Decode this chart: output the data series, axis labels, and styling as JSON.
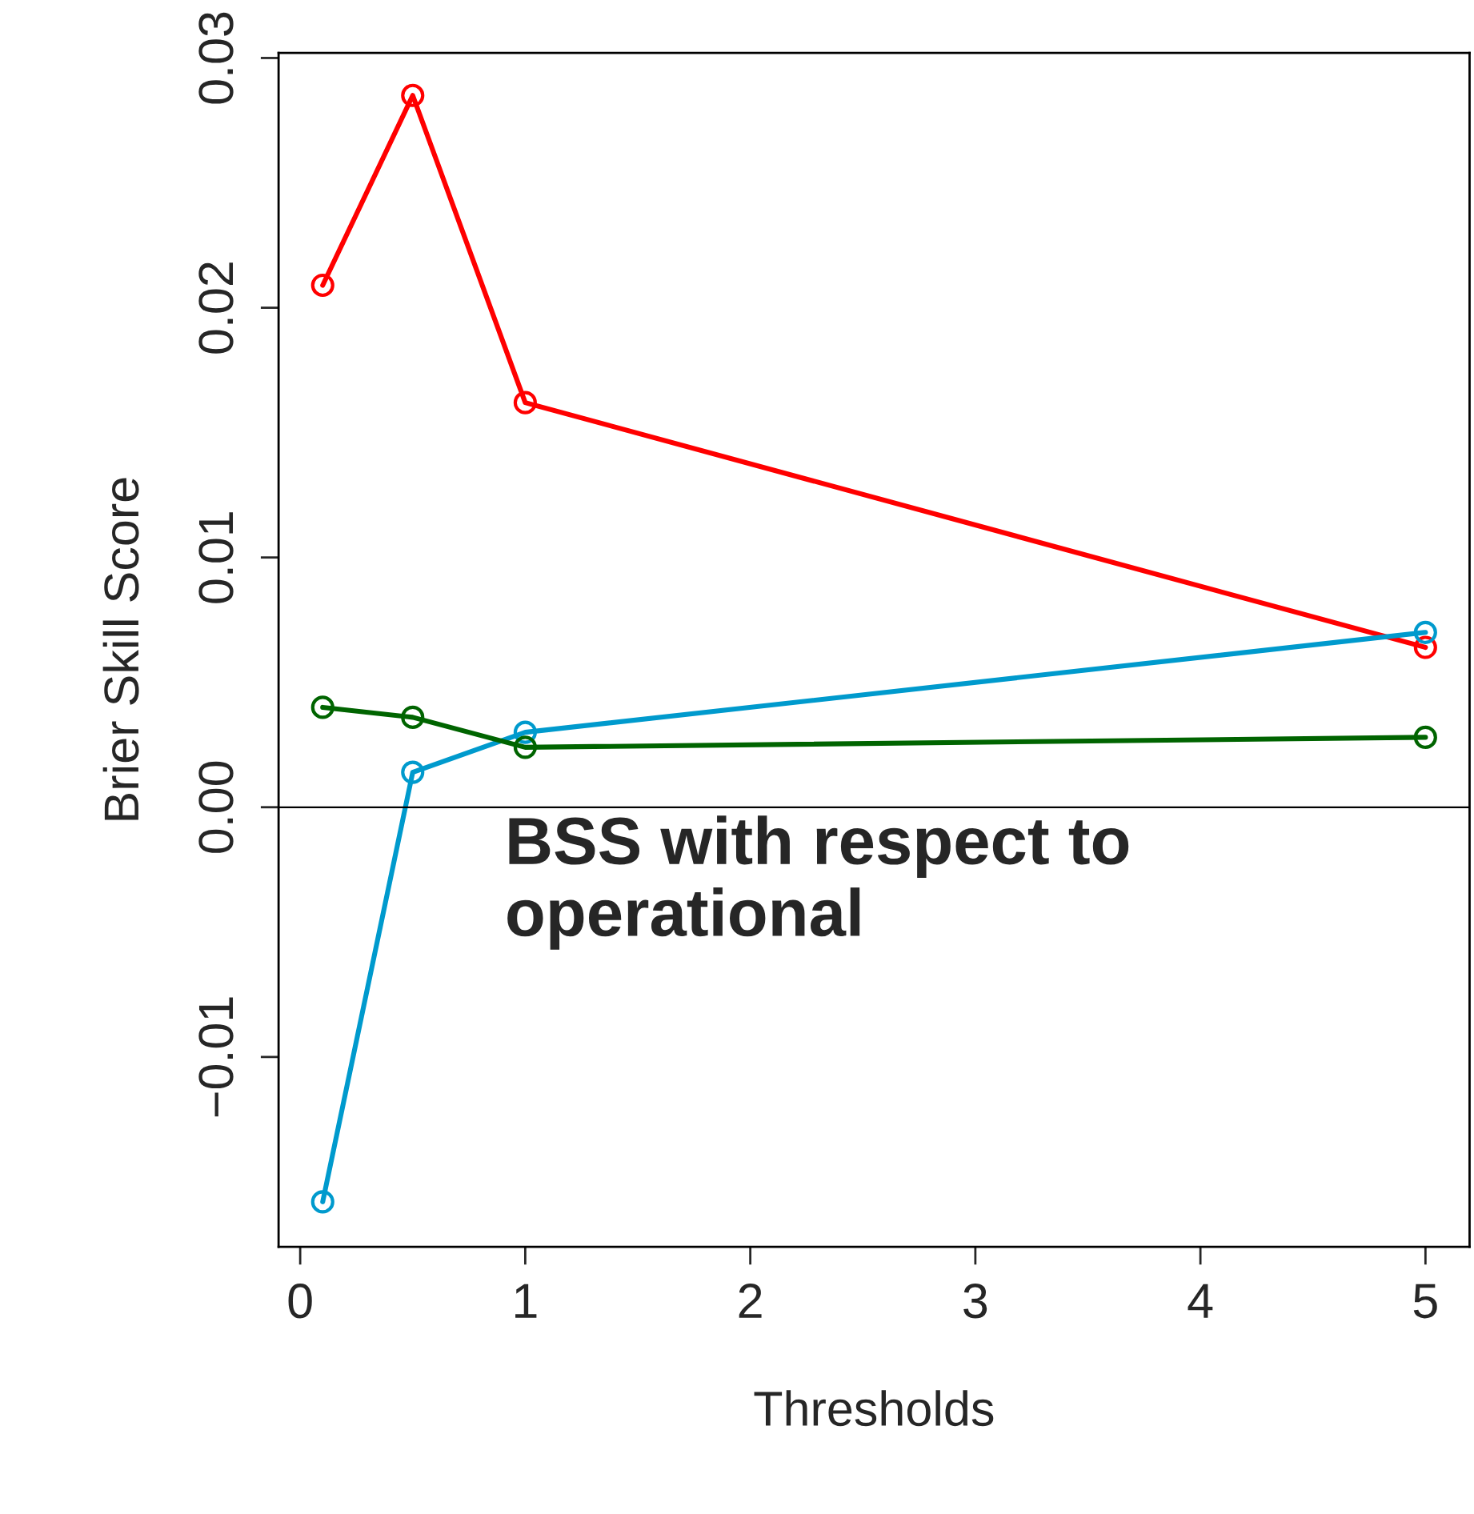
{
  "chart_data": {
    "type": "line",
    "xlabel": "Thresholds",
    "ylabel": "Brier Skill Score",
    "x": [
      0.1,
      0.5,
      1,
      5
    ],
    "series": [
      {
        "color": "#ff0000",
        "values": [
          0.0209,
          0.0285,
          0.0162,
          0.0064
        ]
      },
      {
        "color": "#009acd",
        "values": [
          -0.0158,
          0.0014,
          0.003,
          0.007
        ]
      },
      {
        "color": "#006400",
        "values": [
          0.004,
          0.0036,
          0.0024,
          0.0028
        ]
      }
    ],
    "xlim": [
      -0.096,
      5.196
    ],
    "ylim": [
      -0.0176,
      0.0302
    ],
    "xticks": [
      0,
      1,
      2,
      3,
      4,
      5
    ],
    "yticks": [
      {
        "value": -0.01,
        "label": "−0.01"
      },
      {
        "value": 0,
        "label": "0.00"
      },
      {
        "value": 0.01,
        "label": "0.01"
      },
      {
        "value": 0.02,
        "label": "0.02"
      },
      {
        "value": 0.03,
        "label": "0.03"
      }
    ],
    "ref_lines": [
      {
        "axis": "y",
        "value": 0,
        "color": "#000000"
      }
    ],
    "annotations": [
      "BSS with respect to\noperational"
    ],
    "marker": "circle",
    "line_style": "solid",
    "grid": false,
    "legend": false
  }
}
